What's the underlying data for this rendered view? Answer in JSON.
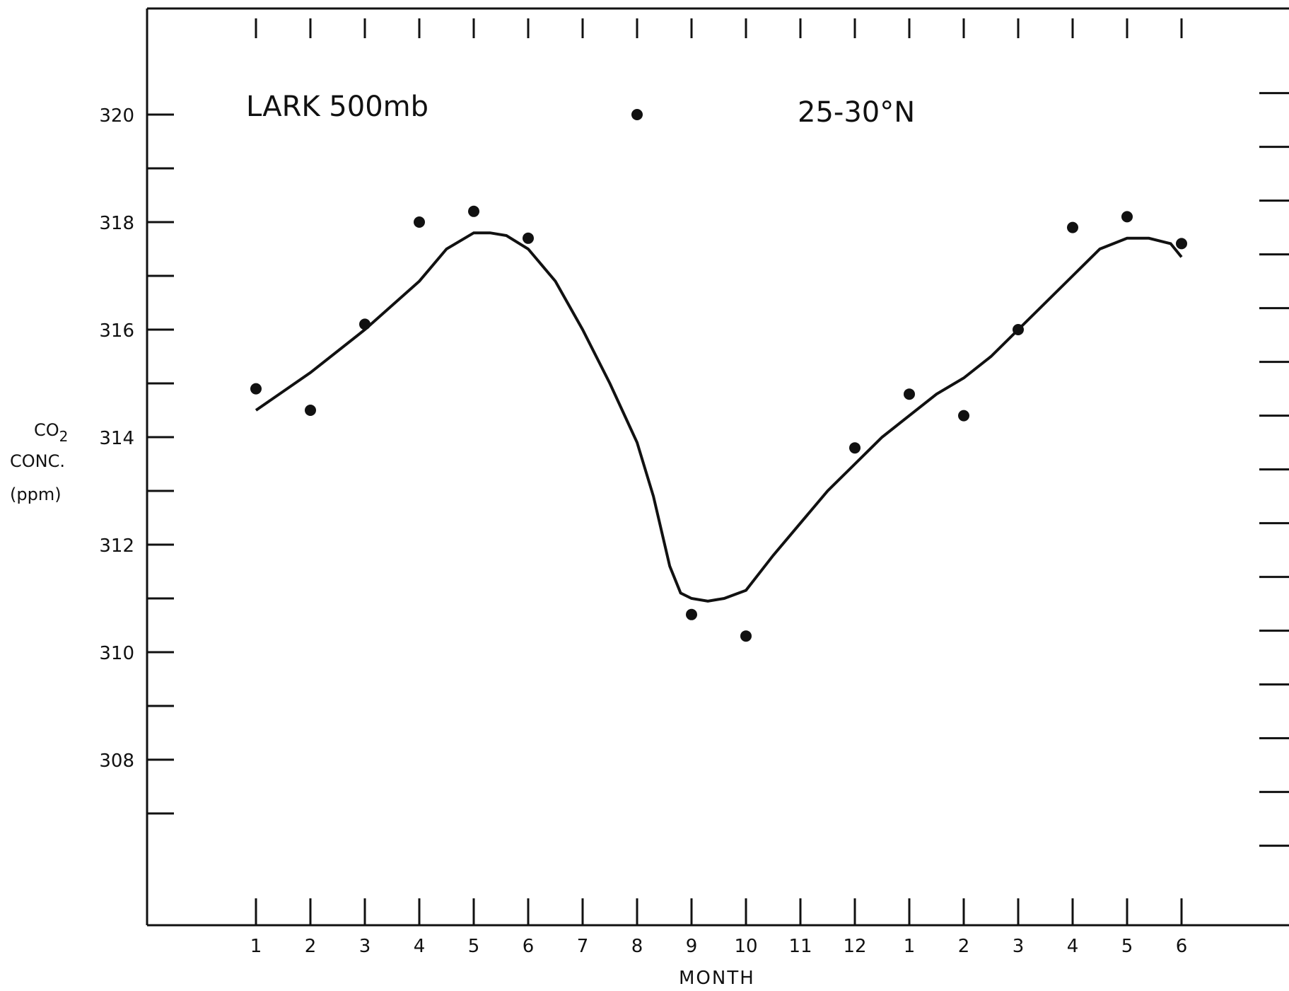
{
  "chart_data": {
    "type": "scatter",
    "annotations": [
      "LARK 500mb",
      "25-30°N"
    ],
    "xlabel": "MONTH",
    "ylabel": [
      "CO2",
      "CONC.",
      "(ppm)"
    ],
    "x_tick_labels": [
      "1",
      "2",
      "3",
      "4",
      "5",
      "6",
      "7",
      "8",
      "9",
      "10",
      "11",
      "12",
      "1",
      "2",
      "3",
      "4",
      "5",
      "6"
    ],
    "y_tick_labels": [
      "320",
      "318",
      "316",
      "314",
      "312",
      "310",
      "308"
    ],
    "ylim": [
      305.4,
      324
    ],
    "y_ticks_major": [
      308,
      310,
      312,
      314,
      316,
      318,
      320
    ],
    "y_ticks_minor": [
      307,
      309,
      311,
      313,
      315,
      317,
      319
    ],
    "grid": false,
    "series": [
      {
        "kind": "points",
        "x": [
          1,
          2,
          3,
          4,
          5,
          6,
          8,
          9,
          10,
          12,
          13,
          14,
          15,
          16,
          17,
          18
        ],
        "y": [
          314.9,
          314.5,
          316.1,
          318.0,
          318.2,
          317.7,
          320.0,
          310.7,
          310.3,
          313.8,
          314.8,
          314.4,
          316.0,
          317.9,
          318.1,
          317.6
        ]
      },
      {
        "kind": "curve",
        "x": [
          1,
          2,
          3,
          4,
          4.5,
          5,
          5.3,
          5.6,
          6,
          6.5,
          7,
          7.5,
          8,
          8.3,
          8.6,
          8.8,
          9,
          9.3,
          9.6,
          10,
          10.5,
          11,
          11.5,
          12,
          12.5,
          13,
          13.5,
          14,
          14.5,
          15,
          15.5,
          16,
          16.5,
          17,
          17.4,
          17.8,
          18
        ],
        "y": [
          314.5,
          315.2,
          316.0,
          316.9,
          317.5,
          317.8,
          317.8,
          317.75,
          317.5,
          316.9,
          316.0,
          315.0,
          313.9,
          312.9,
          311.6,
          311.1,
          311.0,
          310.95,
          311.0,
          311.15,
          311.8,
          312.4,
          313.0,
          313.5,
          314.0,
          314.4,
          314.8,
          315.1,
          315.5,
          316.0,
          316.5,
          317.0,
          317.5,
          317.7,
          317.7,
          317.6,
          317.35
        ]
      }
    ]
  }
}
